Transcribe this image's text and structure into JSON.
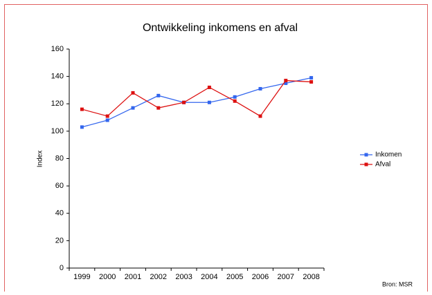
{
  "chart_data": {
    "type": "line",
    "title": "Ontwikkeling inkomens en afval",
    "y_label": "Index",
    "source": "Bron: MSR",
    "categories": [
      "1999",
      "2000",
      "2001",
      "2002",
      "2003",
      "2004",
      "2005",
      "2006",
      "2007",
      "2008"
    ],
    "series": [
      {
        "name": "Inkomen",
        "color": "#3366ee",
        "values": [
          103,
          108,
          117,
          126,
          121,
          121,
          125,
          131,
          135,
          139
        ]
      },
      {
        "name": "Afval",
        "color": "#dd1111",
        "values": [
          116,
          111,
          128,
          117,
          121,
          132,
          122,
          111,
          137,
          136
        ]
      }
    ],
    "ylim": [
      0,
      160
    ],
    "yticks": [
      0,
      20,
      40,
      60,
      80,
      100,
      120,
      140,
      160
    ],
    "grid": false,
    "legend": "right"
  }
}
